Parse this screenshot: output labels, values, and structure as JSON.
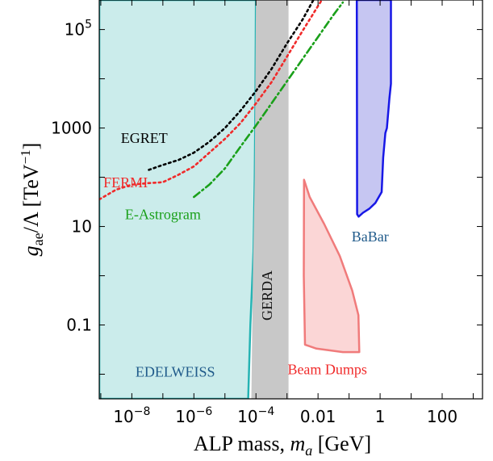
{
  "chart_data": {
    "type": "area",
    "xlabel": "ALP mass, m_a [GeV]",
    "ylabel": "g_ae/Λ [TeV^-1]",
    "xscale": "log",
    "yscale": "log",
    "xlim_log10": [
      -9.05,
      3.3
    ],
    "ylim_log10": [
      -2.5,
      5.6
    ],
    "xticks": [
      {
        "log10": -8,
        "label": "10",
        "exp": "−8"
      },
      {
        "log10": -6,
        "label": "10",
        "exp": "−6"
      },
      {
        "log10": -4,
        "label": "10",
        "exp": "−4"
      },
      {
        "log10": -2,
        "label": "0.01",
        "exp": ""
      },
      {
        "log10": 0,
        "label": "1",
        "exp": ""
      },
      {
        "log10": 2,
        "label": "100",
        "exp": ""
      }
    ],
    "yticks": [
      {
        "log10": -1,
        "label": "0.1",
        "exp": ""
      },
      {
        "log10": 1,
        "label": "10",
        "exp": ""
      },
      {
        "log10": 3,
        "label": "1000",
        "exp": ""
      },
      {
        "log10": 5,
        "label": "10",
        "exp": "5"
      }
    ],
    "regions": [
      {
        "name": "EDELWEISS",
        "fill": "#cbeceb",
        "stroke": "#25b3b3",
        "label_color": "#1f5a8a",
        "label_at": [
          -6.6,
          -2.05
        ],
        "points": [
          [
            -9.05,
            -2.5
          ],
          [
            -4.25,
            -2.5
          ],
          [
            -4.18,
            -1.0
          ],
          [
            -4.08,
            0.5
          ],
          [
            -4.04,
            2.0
          ],
          [
            -4.02,
            3.5
          ],
          [
            -4.0,
            5.6
          ],
          [
            -9.05,
            5.6
          ]
        ]
      },
      {
        "name": "GERDA",
        "fill": "#c8c8c8",
        "stroke": "none",
        "label_color": "#111111",
        "label_vertical": true,
        "label_at": [
          -3.48,
          -0.4
        ],
        "points": [
          [
            -4.15,
            -2.5
          ],
          [
            -2.95,
            -2.5
          ],
          [
            -2.95,
            5.6
          ],
          [
            -4.0,
            5.6
          ],
          [
            -4.04,
            2.0
          ],
          [
            -4.1,
            0.0
          ]
        ]
      },
      {
        "name": "BaBar",
        "fill": "#c6c6f2",
        "stroke": "#1717e6",
        "label_color": "#1f5a8a",
        "label_at": [
          -0.32,
          0.7
        ],
        "points": [
          [
            -0.75,
            5.6
          ],
          [
            -0.74,
            1.25
          ],
          [
            -0.69,
            1.2
          ],
          [
            -0.55,
            1.28
          ],
          [
            -0.35,
            1.36
          ],
          [
            -0.15,
            1.48
          ],
          [
            0.05,
            1.7
          ],
          [
            0.1,
            2.4
          ],
          [
            0.17,
            2.9
          ],
          [
            0.22,
            3.0
          ],
          [
            0.3,
            3.6
          ],
          [
            0.35,
            3.9
          ],
          [
            0.35,
            5.6
          ]
        ]
      },
      {
        "name": "Beam Dumps",
        "fill": "#fbd6d6",
        "stroke": "#f07b7b",
        "label_color": "#f02a2a",
        "label_at": [
          -1.7,
          -2.0
        ],
        "points": [
          [
            -2.45,
            1.95
          ],
          [
            -2.27,
            1.6
          ],
          [
            -1.8,
            1.05
          ],
          [
            -1.3,
            0.4
          ],
          [
            -0.9,
            -0.3
          ],
          [
            -0.7,
            -0.8
          ],
          [
            -0.67,
            -1.55
          ],
          [
            -1.2,
            -1.55
          ],
          [
            -2.05,
            -1.48
          ],
          [
            -2.42,
            -1.4
          ],
          [
            -2.46,
            0.0
          ]
        ]
      }
    ],
    "series": [
      {
        "name": "EGRET",
        "color": "#000000",
        "dash": "2.5,4",
        "label_at": [
          -7.6,
          2.7
        ],
        "points": [
          [
            -7.45,
            2.15
          ],
          [
            -7.0,
            2.25
          ],
          [
            -6.5,
            2.35
          ],
          [
            -6.0,
            2.5
          ],
          [
            -5.5,
            2.72
          ],
          [
            -5.0,
            3.0
          ],
          [
            -4.5,
            3.35
          ],
          [
            -4.0,
            3.75
          ],
          [
            -3.5,
            4.2
          ],
          [
            -3.0,
            4.72
          ],
          [
            -2.5,
            5.2
          ],
          [
            -2.15,
            5.6
          ]
        ]
      },
      {
        "name": "FERMI",
        "color": "#f02a2a",
        "dash": "2.5,4",
        "label_at": [
          -8.2,
          1.8
        ],
        "points": [
          [
            -9.05,
            1.55
          ],
          [
            -8.5,
            1.75
          ],
          [
            -8.0,
            1.85
          ],
          [
            -7.5,
            1.88
          ],
          [
            -7.0,
            1.9
          ],
          [
            -6.5,
            2.05
          ],
          [
            -6.0,
            2.22
          ],
          [
            -5.5,
            2.5
          ],
          [
            -5.0,
            2.78
          ],
          [
            -4.5,
            3.1
          ],
          [
            -4.0,
            3.5
          ],
          [
            -3.5,
            3.93
          ],
          [
            -3.0,
            4.45
          ],
          [
            -2.5,
            4.97
          ],
          [
            -1.88,
            5.6
          ]
        ]
      },
      {
        "name": "E-Astrogram",
        "color": "#1aa01a",
        "dash": "9,4,2,4",
        "label_at": [
          -7.0,
          1.15
        ],
        "points": [
          [
            -6.0,
            1.6
          ],
          [
            -5.5,
            1.85
          ],
          [
            -5.0,
            2.18
          ],
          [
            -4.5,
            2.62
          ],
          [
            -4.0,
            3.05
          ],
          [
            -3.5,
            3.5
          ],
          [
            -3.0,
            3.95
          ],
          [
            -2.5,
            4.4
          ],
          [
            -2.0,
            4.85
          ],
          [
            -1.5,
            5.3
          ],
          [
            -1.2,
            5.55
          ]
        ]
      }
    ],
    "grid": false
  }
}
